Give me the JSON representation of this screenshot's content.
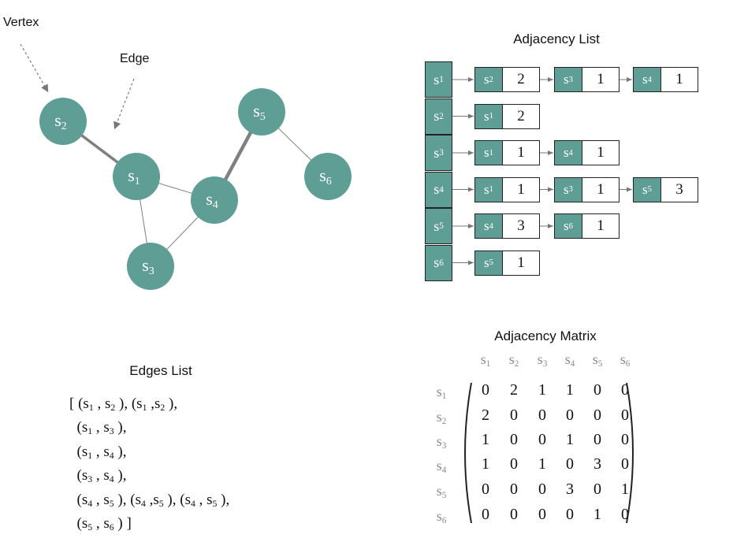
{
  "annotations": {
    "vertex": "Vertex",
    "edge": "Edge"
  },
  "colors": {
    "vertex_fill": "#5e9e95",
    "vertex_text": "#ffffff",
    "edge_line": "#808080"
  },
  "graph": {
    "vertices": [
      "s1",
      "s2",
      "s3",
      "s4",
      "s5",
      "s6"
    ],
    "edges": [
      {
        "from": "s1",
        "to": "s2",
        "weight": 2
      },
      {
        "from": "s1",
        "to": "s3",
        "weight": 1
      },
      {
        "from": "s1",
        "to": "s4",
        "weight": 1
      },
      {
        "from": "s3",
        "to": "s4",
        "weight": 1
      },
      {
        "from": "s4",
        "to": "s5",
        "weight": 3
      },
      {
        "from": "s5",
        "to": "s6",
        "weight": 1
      }
    ]
  },
  "adjacency_list": {
    "title": "Adjacency List",
    "rows": [
      {
        "vertex": "s1",
        "entries": [
          {
            "v": "s2",
            "w": "2"
          },
          {
            "v": "s3",
            "w": "1"
          },
          {
            "v": "s4",
            "w": "1"
          }
        ]
      },
      {
        "vertex": "s2",
        "entries": [
          {
            "v": "s1",
            "w": "2"
          }
        ]
      },
      {
        "vertex": "s3",
        "entries": [
          {
            "v": "s1",
            "w": "1"
          },
          {
            "v": "s4",
            "w": "1"
          }
        ]
      },
      {
        "vertex": "s4",
        "entries": [
          {
            "v": "s1",
            "w": "1"
          },
          {
            "v": "s3",
            "w": "1"
          },
          {
            "v": "s5",
            "w": "3"
          }
        ]
      },
      {
        "vertex": "s5",
        "entries": [
          {
            "v": "s4",
            "w": "3"
          },
          {
            "v": "s6",
            "w": "1"
          }
        ]
      },
      {
        "vertex": "s6",
        "entries": [
          {
            "v": "s5",
            "w": "1"
          }
        ]
      }
    ]
  },
  "edges_list": {
    "title": "Edges List",
    "lines": [
      "[ (s1 , s2 ), (s1 ,s2 ),",
      "  (s1 , s3 ),",
      "  (s1 , s4 ),",
      "  (s3 , s4 ),",
      "  (s4 , s5 ), (s4 ,s5 ), (s4 , s5 ),",
      "  (s5 , s6 ) ]"
    ]
  },
  "adjacency_matrix": {
    "title": "Adjacency Matrix",
    "labels": [
      "s1",
      "s2",
      "s3",
      "s4",
      "s5",
      "s6"
    ],
    "values": [
      [
        "0",
        "2",
        "1",
        "1",
        "0",
        "0"
      ],
      [
        "2",
        "0",
        "0",
        "0",
        "0",
        "0"
      ],
      [
        "1",
        "0",
        "0",
        "1",
        "0",
        "0"
      ],
      [
        "1",
        "0",
        "1",
        "0",
        "3",
        "0"
      ],
      [
        "0",
        "0",
        "0",
        "3",
        "0",
        "1"
      ],
      [
        "0",
        "0",
        "0",
        "0",
        "1",
        "0"
      ]
    ]
  }
}
